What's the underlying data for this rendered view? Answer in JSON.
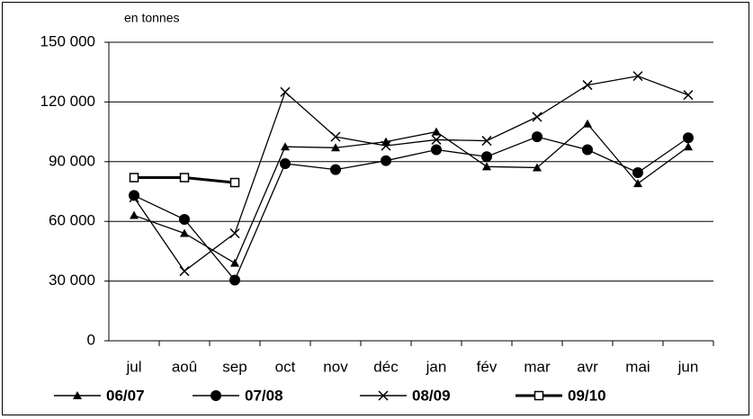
{
  "chart_data": {
    "type": "line",
    "y_axis_label": "en tonnes",
    "categories": [
      "jul",
      "aoû",
      "sep",
      "oct",
      "nov",
      "déc",
      "jan",
      "fév",
      "mar",
      "avr",
      "mai",
      "jun"
    ],
    "series": [
      {
        "name": "06/07",
        "color": "#000000",
        "marker": "triangle",
        "values": [
          63000,
          54000,
          39000,
          97500,
          97000,
          100000,
          105000,
          87500,
          87000,
          109000,
          79000,
          97500
        ]
      },
      {
        "name": "07/08",
        "color": "#000000",
        "marker": "circle",
        "values": [
          73000,
          61000,
          30500,
          89000,
          86000,
          90500,
          96000,
          92500,
          102500,
          96000,
          84500,
          102000
        ]
      },
      {
        "name": "08/09",
        "color": "#000000",
        "marker": "x",
        "values": [
          72000,
          35000,
          54000,
          125000,
          102500,
          98000,
          101000,
          100500,
          112500,
          128500,
          133000,
          123500
        ]
      },
      {
        "name": "09/10",
        "color": "#000000",
        "marker": "square",
        "thick": true,
        "values": [
          82000,
          82000,
          79500,
          null,
          null,
          null,
          null,
          null,
          null,
          null,
          null,
          null
        ]
      }
    ],
    "ylim": [
      0,
      150000
    ],
    "yticks": [
      {
        "value": 0,
        "label": "0"
      },
      {
        "value": 30000,
        "label": "30 000"
      },
      {
        "value": 60000,
        "label": "60 000"
      },
      {
        "value": 90000,
        "label": "90 000"
      },
      {
        "value": 120000,
        "label": "120 000"
      },
      {
        "value": 150000,
        "label": "150 000"
      }
    ],
    "grid": true,
    "legend": "bottom"
  }
}
